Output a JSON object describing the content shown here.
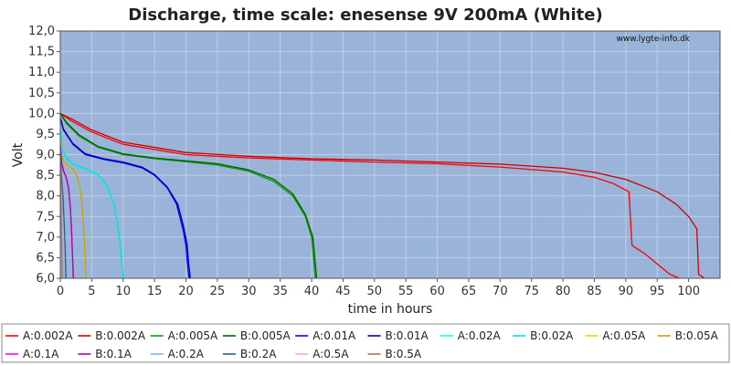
{
  "chart_data": {
    "type": "line",
    "title": "Discharge, time scale: enesense 9V 200mA (White)",
    "xlabel": "time in hours",
    "ylabel": "Volt",
    "watermark": "www.lygte-info.dk",
    "xlim": [
      0,
      105
    ],
    "ylim": [
      6.0,
      12.0
    ],
    "xticks": [
      0,
      5,
      10,
      15,
      20,
      25,
      30,
      35,
      40,
      45,
      50,
      55,
      60,
      65,
      70,
      75,
      80,
      85,
      90,
      95,
      100
    ],
    "xtick_labels": [
      "0",
      "5",
      "10",
      "15",
      "20",
      "25",
      "30",
      "35",
      "40",
      "45",
      "50",
      "55",
      "60",
      "65",
      "70",
      "75",
      "80",
      "85",
      "90",
      "95",
      "100"
    ],
    "yticks": [
      6.0,
      6.5,
      7.0,
      7.5,
      8.0,
      8.5,
      9.0,
      9.5,
      10.0,
      10.5,
      11.0,
      11.5,
      12.0
    ],
    "ytick_labels": [
      "6,0",
      "6,5",
      "7,0",
      "7,5",
      "8,0",
      "8,5",
      "9,0",
      "9,5",
      "10,0",
      "10,5",
      "11,0",
      "11,5",
      "12,0"
    ],
    "grid": true,
    "plot_background": "#9ab3d8",
    "grid_color": "#bfcfe6",
    "legend_position": "bottom",
    "series": [
      {
        "name": "A:0.002A",
        "color": "#ff0000",
        "x": [
          0,
          2,
          5,
          10,
          20,
          30,
          40,
          50,
          60,
          70,
          80,
          85,
          88,
          90.5,
          91,
          93,
          95,
          97,
          98.5
        ],
        "y": [
          10.0,
          9.8,
          9.55,
          9.25,
          9.0,
          8.92,
          8.87,
          8.82,
          8.78,
          8.7,
          8.58,
          8.45,
          8.3,
          8.1,
          6.8,
          6.6,
          6.35,
          6.1,
          6.0
        ]
      },
      {
        "name": "B:0.002A",
        "color": "#cc0000",
        "x": [
          0,
          2,
          5,
          10,
          20,
          30,
          40,
          50,
          60,
          70,
          80,
          85,
          90,
          95,
          98,
          100,
          101.3,
          101.6,
          102.5
        ],
        "y": [
          10.0,
          9.85,
          9.6,
          9.3,
          9.05,
          8.96,
          8.9,
          8.87,
          8.82,
          8.77,
          8.67,
          8.57,
          8.4,
          8.1,
          7.8,
          7.5,
          7.2,
          6.1,
          6.0
        ]
      },
      {
        "name": "A:0.005A",
        "color": "#00a000",
        "x": [
          0,
          1,
          3,
          6,
          10,
          15,
          20,
          25,
          30,
          34,
          37,
          39,
          40,
          40.3,
          40.6
        ],
        "y": [
          10.0,
          9.75,
          9.45,
          9.18,
          9.0,
          8.9,
          8.83,
          8.75,
          8.6,
          8.35,
          8.0,
          7.5,
          7.0,
          6.5,
          6.0
        ]
      },
      {
        "name": "B:0.005A",
        "color": "#006000",
        "x": [
          0,
          1,
          3,
          6,
          10,
          15,
          20,
          25,
          30,
          34,
          37,
          39,
          40.2,
          40.5,
          40.8
        ],
        "y": [
          10.0,
          9.78,
          9.48,
          9.2,
          9.02,
          8.92,
          8.85,
          8.78,
          8.63,
          8.4,
          8.05,
          7.55,
          7.0,
          6.5,
          6.0
        ]
      },
      {
        "name": "A:0.01A",
        "color": "#0000ff",
        "x": [
          0,
          0.5,
          2,
          4,
          7,
          10,
          13,
          15,
          17,
          18.5,
          19.5,
          20,
          20.2,
          20.5
        ],
        "y": [
          9.9,
          9.6,
          9.25,
          9.0,
          8.88,
          8.8,
          8.68,
          8.5,
          8.2,
          7.8,
          7.2,
          6.8,
          6.4,
          6.0
        ]
      },
      {
        "name": "B:0.01A",
        "color": "#0000b0",
        "x": [
          0,
          0.5,
          2,
          4,
          7,
          10,
          13,
          15,
          17,
          18.7,
          19.7,
          20.2,
          20.4,
          20.7
        ],
        "y": [
          9.9,
          9.62,
          9.27,
          9.02,
          8.9,
          8.82,
          8.7,
          8.52,
          8.22,
          7.8,
          7.2,
          6.8,
          6.4,
          6.0
        ]
      },
      {
        "name": "A:0.02A",
        "color": "#00ffff",
        "x": [
          0,
          0.3,
          1,
          2,
          4,
          6,
          7.5,
          8.5,
          9.2,
          9.6,
          9.8,
          10.0
        ],
        "y": [
          9.6,
          9.1,
          8.9,
          8.75,
          8.65,
          8.5,
          8.2,
          7.8,
          7.2,
          6.7,
          6.3,
          6.0
        ]
      },
      {
        "name": "B:0.02A",
        "color": "#00e0e0",
        "x": [
          0,
          0.3,
          1,
          2,
          4,
          6,
          7.5,
          8.5,
          9.2,
          9.6,
          9.8,
          10.0
        ],
        "y": [
          9.6,
          9.12,
          8.92,
          8.77,
          8.66,
          8.52,
          8.22,
          7.82,
          7.22,
          6.72,
          6.32,
          6.0
        ]
      },
      {
        "name": "A:0.05A",
        "color": "#ffcc00",
        "x": [
          0,
          0.2,
          0.6,
          1.2,
          2,
          2.8,
          3.3,
          3.6,
          3.8,
          3.9,
          4.0
        ],
        "y": [
          9.3,
          8.95,
          8.8,
          8.72,
          8.62,
          8.4,
          8.0,
          7.5,
          7.0,
          6.5,
          6.0
        ]
      },
      {
        "name": "B:0.05A",
        "color": "#c8a000",
        "x": [
          0,
          0.2,
          0.6,
          1.2,
          2,
          2.8,
          3.3,
          3.6,
          3.8,
          3.95,
          4.05
        ],
        "y": [
          9.3,
          8.97,
          8.82,
          8.74,
          8.64,
          8.42,
          8.02,
          7.52,
          7.02,
          6.5,
          6.0
        ]
      },
      {
        "name": "A:0.1A",
        "color": "#ff00ff",
        "x": [
          0,
          0.2,
          0.5,
          0.9,
          1.3,
          1.6,
          1.8,
          1.95,
          2.05
        ],
        "y": [
          9.2,
          8.8,
          8.6,
          8.45,
          8.2,
          7.7,
          7.1,
          6.5,
          6.0
        ]
      },
      {
        "name": "B:0.1A",
        "color": "#b000b0",
        "x": [
          0,
          0.2,
          0.5,
          0.9,
          1.3,
          1.6,
          1.8,
          1.95,
          2.1
        ],
        "y": [
          9.2,
          8.82,
          8.62,
          8.47,
          8.22,
          7.72,
          7.12,
          6.52,
          6.0
        ]
      },
      {
        "name": "A:0.2A",
        "color": "#7fb2ff",
        "x": [
          0,
          0.15,
          0.4,
          0.6,
          0.75,
          0.85
        ],
        "y": [
          9.0,
          8.5,
          8.0,
          7.4,
          6.8,
          6.0
        ]
      },
      {
        "name": "B:0.2A",
        "color": "#2b5f8f",
        "x": [
          0,
          0.15,
          0.4,
          0.6,
          0.75,
          0.9
        ],
        "y": [
          9.0,
          8.52,
          8.02,
          7.42,
          6.82,
          6.0
        ]
      },
      {
        "name": "A:0.5A",
        "color": "#f2b4a0",
        "x": [
          0,
          0.1,
          0.2,
          0.3
        ],
        "y": [
          8.6,
          7.8,
          7.0,
          6.0
        ]
      },
      {
        "name": "B:0.5A",
        "color": "#b96a5e",
        "x": [
          0,
          0.1,
          0.2,
          0.32
        ],
        "y": [
          8.6,
          7.8,
          7.0,
          6.0
        ]
      }
    ]
  }
}
